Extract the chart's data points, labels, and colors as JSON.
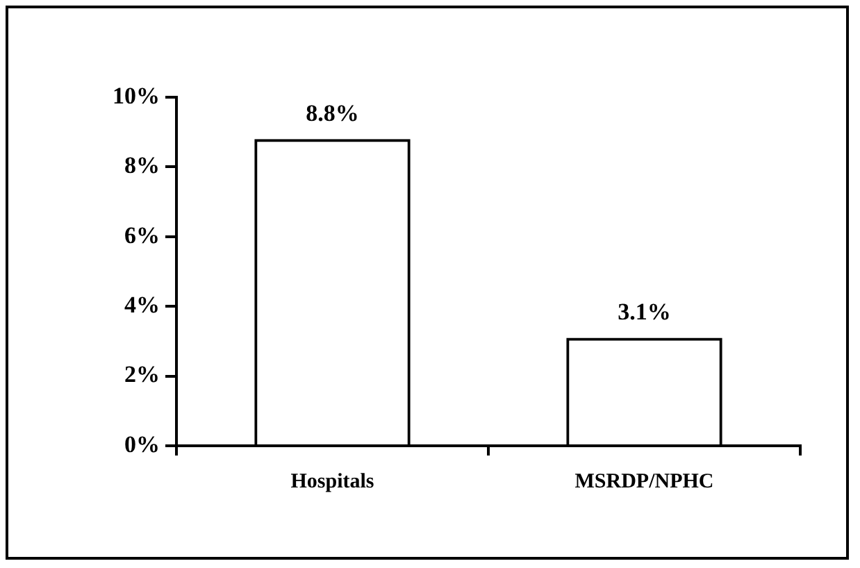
{
  "chart_data": {
    "type": "bar",
    "categories": [
      "Hospitals",
      "MSRDP/NPHC"
    ],
    "values": [
      8.8,
      3.1
    ],
    "value_labels": [
      "8.8%",
      "3.1%"
    ],
    "color": "#000000",
    "ylim": [
      0,
      10
    ],
    "yticks": [
      {
        "value": 0,
        "label": "0%"
      },
      {
        "value": 2,
        "label": "2%"
      },
      {
        "value": 4,
        "label": "4%"
      },
      {
        "value": 6,
        "label": "6%"
      },
      {
        "value": 8,
        "label": "8%"
      },
      {
        "value": 10,
        "label": "10%"
      }
    ],
    "grid": false,
    "legend": false
  }
}
